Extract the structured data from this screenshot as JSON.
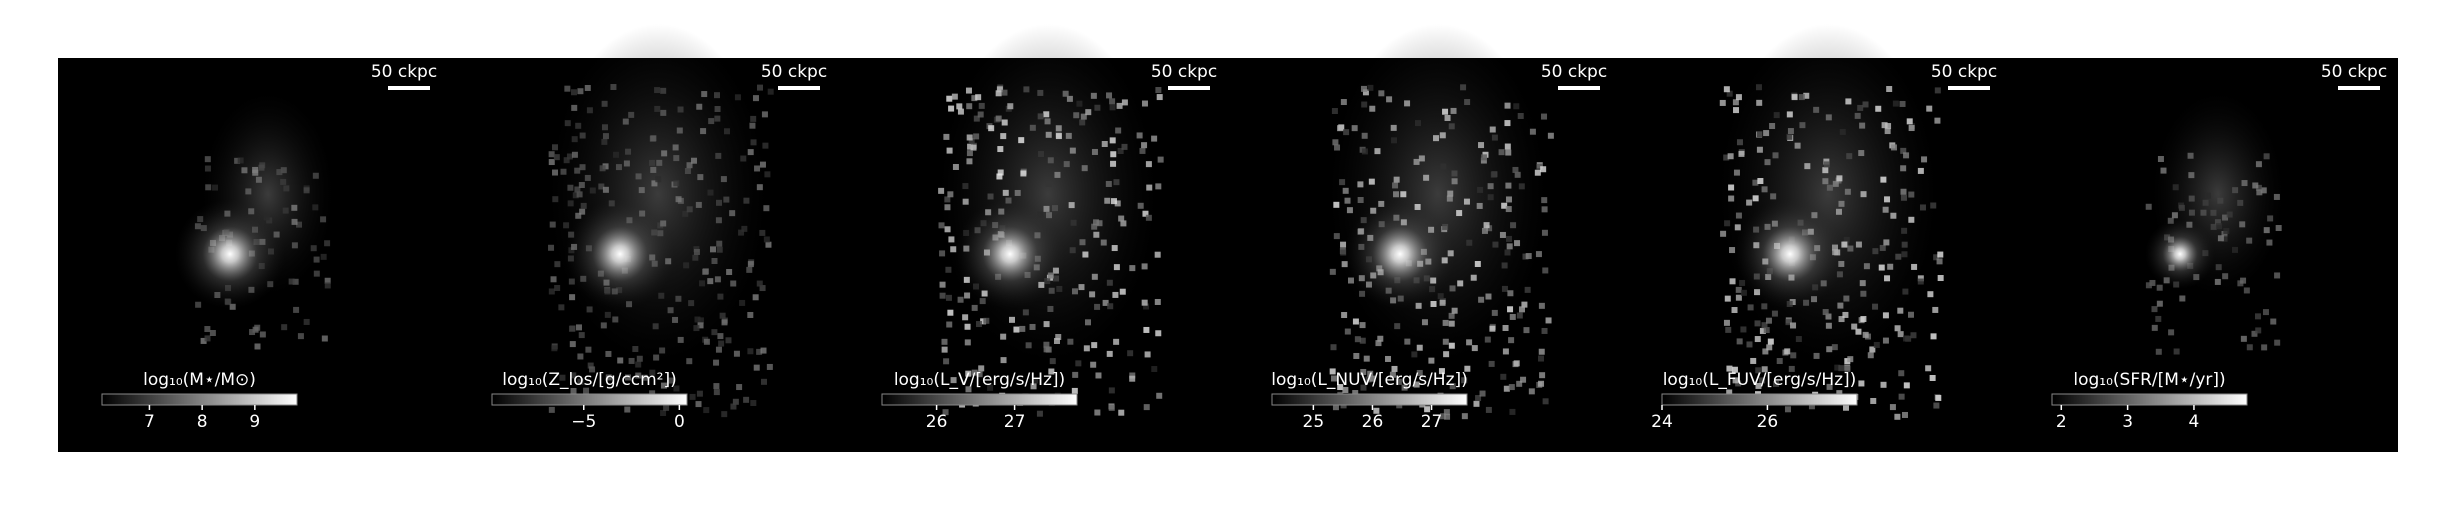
{
  "panels": [
    {
      "scalebar": "50 ckpc",
      "colorbar": {
        "label": "log₁₀(M⋆/M⊙)",
        "lim": [
          6.1,
          9.8
        ],
        "ticks": [
          7,
          8,
          9
        ]
      }
    },
    {
      "scalebar": "50 ckpc",
      "colorbar": {
        "label": "log₁₀(Z_los/[g/ccm²])",
        "lim": [
          -9.8,
          0.4
        ],
        "ticks": [
          {
            "value": -5,
            "label": "−5"
          },
          0
        ]
      }
    },
    {
      "scalebar": "50 ckpc",
      "colorbar": {
        "label": "log₁₀(L_V/[erg/s/Hz])",
        "lim": [
          25.3,
          27.8
        ],
        "ticks": [
          26,
          27
        ]
      }
    },
    {
      "scalebar": "50 ckpc",
      "colorbar": {
        "label": "log₁₀(L_NUV/[erg/s/Hz])",
        "lim": [
          24.3,
          27.6
        ],
        "ticks": [
          25,
          26,
          27
        ]
      }
    },
    {
      "scalebar": "50 ckpc",
      "colorbar": {
        "label": "log₁₀(L_FUV/[erg/s/Hz])",
        "lim": [
          24.0,
          27.7
        ],
        "ticks": [
          24,
          26
        ]
      }
    },
    {
      "scalebar": "50 ckpc",
      "colorbar": {
        "label": "log₁₀(SFR/[M⋆/yr])",
        "lim": [
          1.86,
          4.8
        ],
        "ticks": [
          2,
          3,
          4
        ]
      }
    }
  ]
}
